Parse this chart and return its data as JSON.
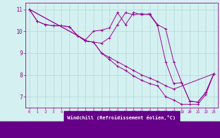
{
  "xlabel": "Windchill (Refroidissement éolien,°C)",
  "background_color": "#d4f0f0",
  "line_color": "#990099",
  "grid_color": "#b0d8d8",
  "axis_bg": "#5500aa",
  "xlim": [
    -0.5,
    23.5
  ],
  "ylim": [
    6.5,
    11.3
  ],
  "xticks": [
    0,
    1,
    2,
    3,
    4,
    5,
    6,
    7,
    8,
    9,
    10,
    11,
    12,
    13,
    14,
    15,
    16,
    17,
    18,
    19,
    20,
    21,
    22,
    23
  ],
  "yticks": [
    7,
    8,
    9,
    10,
    11
  ],
  "segments": [
    {
      "x": [
        0,
        1,
        2,
        3,
        4,
        5,
        6,
        7,
        8,
        9,
        10,
        11,
        12,
        13,
        14,
        15,
        16,
        17,
        18,
        19,
        20,
        21,
        22,
        23
      ],
      "y": [
        11.0,
        10.45,
        10.3,
        10.25,
        10.25,
        10.2,
        9.8,
        9.6,
        10.0,
        10.05,
        10.15,
        10.85,
        10.3,
        10.85,
        10.75,
        10.8,
        10.3,
        10.1,
        8.6,
        7.65,
        6.8,
        6.75,
        7.2,
        8.05
      ]
    },
    {
      "x": [
        0,
        1,
        2,
        3,
        4,
        5,
        6,
        7,
        8,
        9,
        10,
        11,
        12,
        13,
        14,
        15,
        16,
        17,
        18,
        19,
        20,
        21,
        22,
        23
      ],
      "y": [
        11.0,
        10.45,
        10.3,
        10.25,
        10.25,
        10.2,
        9.8,
        9.55,
        9.5,
        9.45,
        9.7,
        10.3,
        10.85,
        10.75,
        10.8,
        10.75,
        10.25,
        8.6,
        7.6,
        7.65,
        6.8,
        6.75,
        7.2,
        8.05
      ]
    },
    {
      "x": [
        0,
        6,
        7,
        8,
        9,
        10,
        11,
        12,
        13,
        14,
        15,
        16,
        17,
        18,
        23
      ],
      "y": [
        11.0,
        9.8,
        9.55,
        9.5,
        9.0,
        8.8,
        8.6,
        8.4,
        8.2,
        8.0,
        7.85,
        7.7,
        7.5,
        7.35,
        8.05
      ]
    },
    {
      "x": [
        0,
        6,
        7,
        8,
        9,
        10,
        11,
        12,
        13,
        14,
        15,
        16,
        17,
        18,
        19,
        20,
        21,
        22,
        23
      ],
      "y": [
        11.0,
        9.8,
        9.55,
        9.5,
        9.0,
        8.7,
        8.4,
        8.2,
        7.95,
        7.75,
        7.6,
        7.5,
        7.0,
        6.85,
        6.65,
        6.65,
        6.65,
        7.1,
        8.05
      ]
    }
  ]
}
